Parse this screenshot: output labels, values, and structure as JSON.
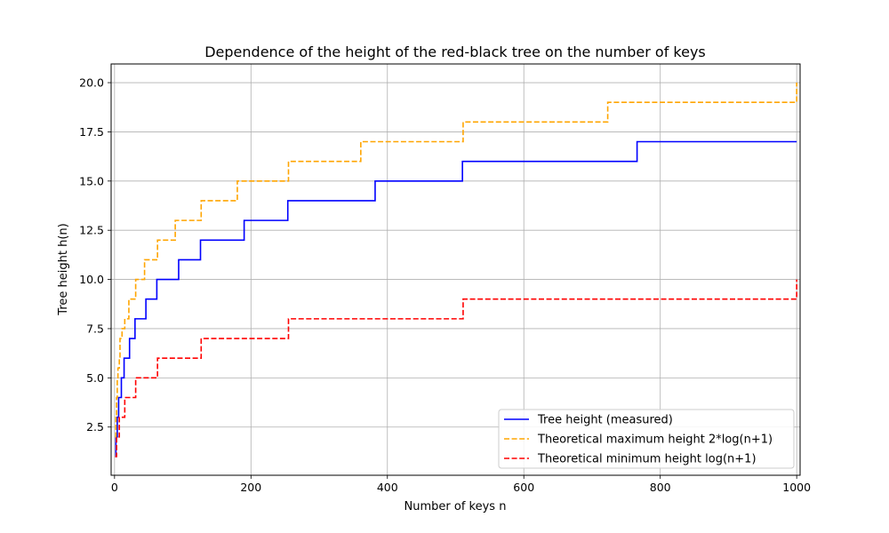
{
  "chart_data": {
    "type": "line",
    "title": "Dependence of the height of the red-black tree on the number of keys",
    "xlabel": "Number of keys n",
    "ylabel": "Tree height h(n)",
    "xlim": [
      -5,
      1005
    ],
    "ylim": [
      0.05,
      20.95
    ],
    "xticks": [
      0,
      200,
      400,
      600,
      800,
      1000
    ],
    "yticks": [
      2.5,
      5.0,
      7.5,
      10.0,
      12.5,
      15.0,
      17.5,
      20.0
    ],
    "xtick_labels": [
      "0",
      "200",
      "400",
      "600",
      "800",
      "1000"
    ],
    "ytick_labels": [
      "2.5",
      "5.0",
      "7.5",
      "10.0",
      "12.5",
      "15.0",
      "17.5",
      "20.0"
    ],
    "grid": true,
    "legend_position": "lower-right",
    "series": [
      {
        "name": "Tree height (measured)",
        "color": "#0000ff",
        "style": "solid",
        "steps": [
          [
            1,
            1
          ],
          [
            2,
            2
          ],
          [
            4,
            3
          ],
          [
            6,
            4
          ],
          [
            10,
            5
          ],
          [
            14,
            6
          ],
          [
            22,
            7
          ],
          [
            30,
            8
          ],
          [
            46,
            9
          ],
          [
            62,
            10
          ],
          [
            94,
            11
          ],
          [
            126,
            12
          ],
          [
            190,
            13
          ],
          [
            254,
            14
          ],
          [
            382,
            15
          ],
          [
            510,
            16
          ],
          [
            766,
            17
          ]
        ]
      },
      {
        "name": "Theoretical maximum height 2*log(n+1)",
        "color": "#ffa500",
        "style": "dashed",
        "steps": [
          [
            1,
            2
          ],
          [
            2,
            3
          ],
          [
            3,
            4
          ],
          [
            4,
            5
          ],
          [
            5,
            5.5
          ],
          [
            7,
            6
          ],
          [
            8,
            7
          ],
          [
            11,
            7.5
          ],
          [
            15,
            8
          ],
          [
            21,
            9
          ],
          [
            31,
            10
          ],
          [
            44,
            11
          ],
          [
            63,
            12
          ],
          [
            89,
            13
          ],
          [
            127,
            14
          ],
          [
            180,
            15
          ],
          [
            255,
            16
          ],
          [
            361,
            17
          ],
          [
            511,
            18
          ],
          [
            723,
            19
          ],
          [
            1000,
            20
          ]
        ]
      },
      {
        "name": "Theoretical minimum height log(n+1)",
        "color": "#ff0000",
        "style": "dashed",
        "steps": [
          [
            1,
            1
          ],
          [
            3,
            2
          ],
          [
            7,
            3
          ],
          [
            15,
            4
          ],
          [
            31,
            5
          ],
          [
            63,
            6
          ],
          [
            127,
            7
          ],
          [
            255,
            8
          ],
          [
            511,
            9
          ],
          [
            1000,
            10
          ]
        ]
      }
    ],
    "x_end": 1000
  }
}
